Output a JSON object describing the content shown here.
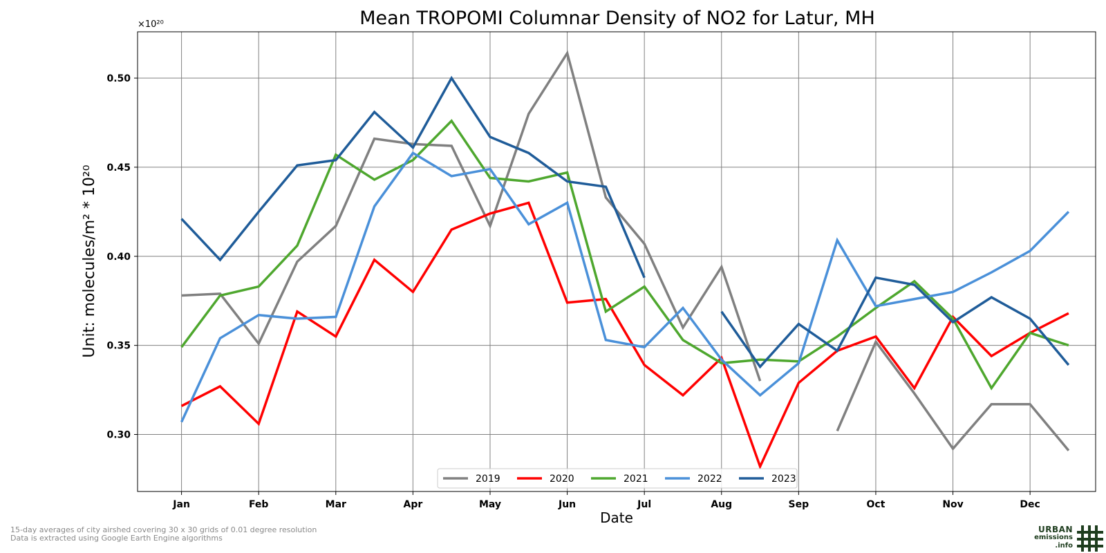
{
  "chart_data": {
    "type": "line",
    "title": "Mean TROPOMI Columnar Density of NO2 for Latur, MH",
    "xlabel": "Date",
    "ylabel": "Unit: molecules/m² * 10²⁰",
    "y_offset_label": "×10²⁰",
    "ylim": [
      0.268,
      0.526
    ],
    "xlim": [
      -0.57,
      11.85
    ],
    "yticks": [
      "0.30",
      "0.35",
      "0.40",
      "0.45",
      "0.50"
    ],
    "ytick_values": [
      0.3,
      0.35,
      0.4,
      0.45,
      0.5
    ],
    "xticks": [
      "Jan",
      "Feb",
      "Mar",
      "Apr",
      "May",
      "Jun",
      "Jul",
      "Aug",
      "Sep",
      "Oct",
      "Nov",
      "Dec"
    ],
    "xtick_values": [
      0,
      1,
      2,
      3,
      4,
      5,
      6,
      7,
      8,
      9,
      10,
      11
    ],
    "grid": true,
    "legend_position": "bottom-center",
    "series": [
      {
        "name": "2019",
        "color": "#808080",
        "x": [
          0,
          0.5,
          1,
          1.5,
          2,
          2.5,
          3,
          3.5,
          4,
          4.5,
          5,
          5.5,
          6,
          6.5,
          7,
          7.5,
          8,
          8.5,
          9,
          9.5,
          10,
          10.5,
          11,
          11.5
        ],
        "y": [
          0.378,
          0.379,
          0.351,
          0.397,
          0.417,
          0.466,
          0.463,
          0.462,
          0.417,
          0.48,
          0.514,
          0.433,
          0.407,
          0.36,
          0.394,
          0.33,
          null,
          0.302,
          0.352,
          0.323,
          0.292,
          0.317,
          0.317,
          0.291
        ]
      },
      {
        "name": "2020",
        "color": "#ff0000",
        "x": [
          0,
          0.5,
          1,
          1.5,
          2,
          2.5,
          3,
          3.5,
          4,
          4.5,
          5,
          5.5,
          6,
          6.5,
          7,
          7.5,
          8,
          8.5,
          9,
          9.5,
          10,
          10.5,
          11,
          11.5
        ],
        "y": [
          0.316,
          0.327,
          0.306,
          0.369,
          0.355,
          0.398,
          0.38,
          0.415,
          0.424,
          0.43,
          0.374,
          0.376,
          0.339,
          0.322,
          0.343,
          0.282,
          0.329,
          0.347,
          0.355,
          0.326,
          0.366,
          0.344,
          0.357,
          0.368
        ]
      },
      {
        "name": "2021",
        "color": "#4ea72e",
        "x": [
          0,
          0.5,
          1,
          1.5,
          2,
          2.5,
          3,
          3.5,
          4,
          4.5,
          5,
          5.5,
          6,
          6.5,
          7,
          7.5,
          8,
          8.5,
          9,
          9.5,
          10,
          10.5,
          11,
          11.5
        ],
        "y": [
          0.349,
          0.378,
          0.383,
          0.406,
          0.457,
          0.443,
          0.454,
          0.476,
          0.444,
          0.442,
          0.447,
          0.369,
          0.383,
          0.353,
          0.34,
          0.342,
          0.341,
          0.355,
          0.371,
          0.386,
          0.365,
          0.326,
          0.357,
          0.35
        ]
      },
      {
        "name": "2022",
        "color": "#4a90d9",
        "x": [
          0,
          0.5,
          1,
          1.5,
          2,
          2.5,
          3,
          3.5,
          4,
          4.5,
          5,
          5.5,
          6,
          6.5,
          7,
          7.5,
          8,
          8.5,
          9,
          9.5,
          10,
          10.5,
          11,
          11.5
        ],
        "y": [
          0.307,
          0.354,
          0.367,
          0.365,
          0.366,
          0.428,
          0.458,
          0.445,
          0.449,
          0.418,
          0.43,
          0.353,
          0.349,
          0.371,
          0.342,
          0.322,
          0.34,
          0.409,
          0.372,
          0.376,
          0.38,
          0.391,
          0.403,
          0.425
        ]
      },
      {
        "name": "2023",
        "color": "#1f5c99",
        "x": [
          0,
          0.5,
          1,
          1.5,
          2,
          2.5,
          3,
          3.5,
          4,
          4.5,
          5,
          5.5,
          6,
          6.5,
          7,
          7.5,
          8,
          8.5,
          9,
          9.5,
          10,
          10.5,
          11,
          11.5
        ],
        "y": [
          0.421,
          0.398,
          0.425,
          0.451,
          0.454,
          0.481,
          0.461,
          0.5,
          0.467,
          0.458,
          0.442,
          0.439,
          0.388,
          null,
          0.369,
          0.338,
          0.362,
          0.347,
          0.388,
          0.384,
          0.363,
          0.377,
          0.365,
          0.339
        ]
      }
    ]
  },
  "footnotes": [
    "15-day averages of city airshed covering 30 x 30 grids of 0.01 degree resolution",
    "Data is extracted using Google Earth Engine algorithms"
  ],
  "logo": {
    "line1": "URBAN",
    "line2": "emissions",
    "line3": ".info",
    "color": "#1e3d1e"
  }
}
